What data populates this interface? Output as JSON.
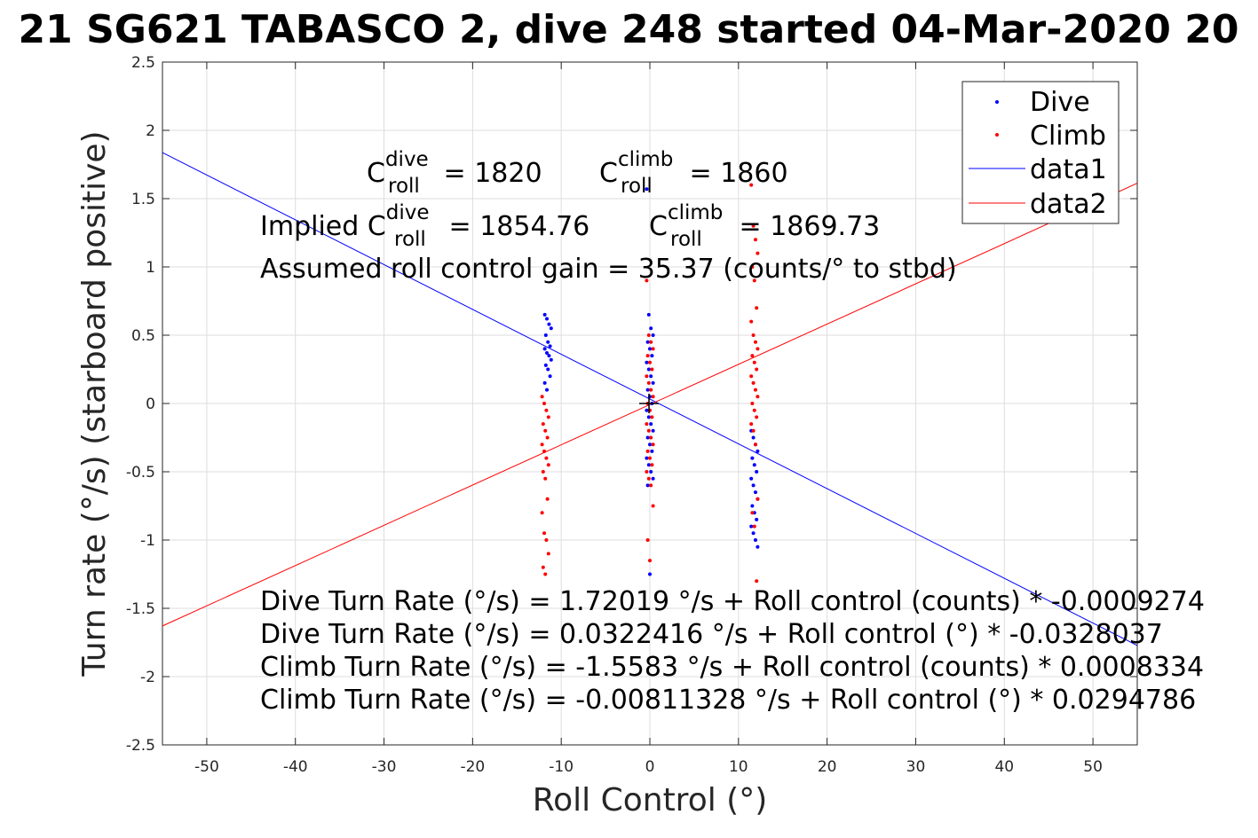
{
  "chart_data": {
    "type": "scatter",
    "title": "21 SG621 TABASCO 2, dive 248 started 04-Mar-2020 20",
    "xlabel": "Roll Control (°)",
    "ylabel": "Turn rate (°/s) (starboard positive)",
    "xlim": [
      -55,
      55
    ],
    "ylim": [
      -2.5,
      2.5
    ],
    "grid": true,
    "x_ticks": [
      "-50",
      "-40",
      "-30",
      "-20",
      "-10",
      "0",
      "10",
      "20",
      "30",
      "40",
      "50"
    ],
    "y_ticks": [
      "2.5",
      "2",
      "1.5",
      "1",
      "0.5",
      "0",
      "-0.5",
      "-1",
      "-1.5",
      "-2",
      "-2.5"
    ],
    "legend_position": "top-right",
    "legend": [
      {
        "label": "Dive",
        "marker": "dot",
        "color": "#0000ff"
      },
      {
        "label": "Climb",
        "marker": "dot",
        "color": "#ff0000"
      },
      {
        "label": "data1",
        "marker": "line",
        "color": "#0000ff"
      },
      {
        "label": "data2",
        "marker": "line",
        "color": "#ff0000"
      }
    ],
    "series": [
      {
        "name": "Dive",
        "kind": "points",
        "color": "#0000ff",
        "clusters": [
          {
            "x": -11.5,
            "y_values": [
              0.65,
              0.62,
              0.58,
              0.55,
              0.5,
              0.45,
              0.42,
              0.4,
              0.37,
              0.35,
              0.32,
              0.28,
              0.25,
              0.2,
              0.15,
              0.1
            ]
          },
          {
            "x": 0,
            "y_values": [
              1.57,
              0.65,
              0.55,
              0.5,
              0.45,
              0.4,
              0.35,
              0.3,
              0.25,
              0.2,
              0.15,
              0.1,
              0.05,
              0.0,
              -0.05,
              -0.1,
              -0.15,
              -0.2,
              -0.25,
              -0.3,
              -0.35,
              -0.4,
              -0.45,
              -0.5,
              -0.55,
              -0.6,
              -1.25
            ]
          },
          {
            "x": 11.8,
            "y_values": [
              -0.2,
              -0.25,
              -0.3,
              -0.35,
              -0.4,
              -0.45,
              -0.5,
              -0.55,
              -0.6,
              -0.65,
              -0.7,
              -0.75,
              -0.8,
              -0.85,
              -0.9,
              -0.95,
              -1.0,
              -1.05
            ]
          }
        ]
      },
      {
        "name": "Climb",
        "kind": "points",
        "color": "#ff0000",
        "clusters": [
          {
            "x": -11.8,
            "y_values": [
              0.05,
              0.0,
              -0.05,
              -0.1,
              -0.15,
              -0.2,
              -0.25,
              -0.3,
              -0.35,
              -0.4,
              -0.45,
              -0.5,
              -0.55,
              -0.7,
              -0.8,
              -0.95,
              -1.0,
              -1.1,
              -1.2,
              -1.25
            ]
          },
          {
            "x": 0,
            "y_values": [
              0.9,
              0.5,
              0.45,
              0.4,
              0.35,
              0.3,
              0.25,
              0.2,
              0.15,
              0.1,
              0.05,
              0.0,
              -0.05,
              -0.1,
              -0.15,
              -0.2,
              -0.25,
              -0.3,
              -0.35,
              -0.4,
              -0.45,
              -0.5,
              -0.55,
              -0.6,
              -0.75,
              -1.0,
              -1.15
            ]
          },
          {
            "x": 11.8,
            "y_values": [
              1.6,
              1.3,
              1.2,
              1.1,
              1.0,
              0.9,
              0.7,
              0.6,
              0.5,
              0.45,
              0.4,
              0.35,
              0.3,
              0.25,
              0.2,
              0.15,
              0.1,
              0.05,
              0.0,
              -0.05,
              -0.1,
              -0.15,
              -0.2,
              -0.3,
              -0.7,
              -0.8,
              -0.9,
              -1.3
            ]
          }
        ]
      },
      {
        "name": "data1",
        "kind": "line",
        "color": "#0000ff",
        "x": [
          -55,
          55
        ],
        "y": [
          1.837,
          -1.772
        ]
      },
      {
        "name": "data2",
        "kind": "line",
        "color": "#ff0000",
        "x": [
          -55,
          55
        ],
        "y": [
          -1.629,
          1.613
        ]
      }
    ],
    "annotations": {
      "c_roll_dive": {
        "base": "C",
        "sup": "dive",
        "sub": "roll",
        "value": " = 1820"
      },
      "c_roll_climb": {
        "base": "C",
        "sup": "climb",
        "sub": "roll",
        "value": " = 1860"
      },
      "implied_dive": {
        "prefix": "Implied C",
        "sup": "dive",
        "sub": "roll",
        "value": " = 1854.76"
      },
      "implied_climb": {
        "base": "C",
        "sup": "climb",
        "sub": "roll",
        "value": " = 1869.73"
      },
      "gain": "Assumed roll control gain = 35.37 (counts/° to stbd)",
      "equations": [
        "Dive Turn Rate (°/s) = 1.72019 °/s + Roll control (counts) * -0.0009274",
        "Dive Turn Rate (°/s) = 0.0322416 °/s + Roll control (°) * -0.0328037",
        "Climb Turn Rate (°/s) = -1.5583 °/s + Roll control (counts) * 0.0008334",
        "Climb Turn Rate (°/s) = -0.00811328 °/s + Roll control (°) * 0.0294786"
      ]
    }
  }
}
